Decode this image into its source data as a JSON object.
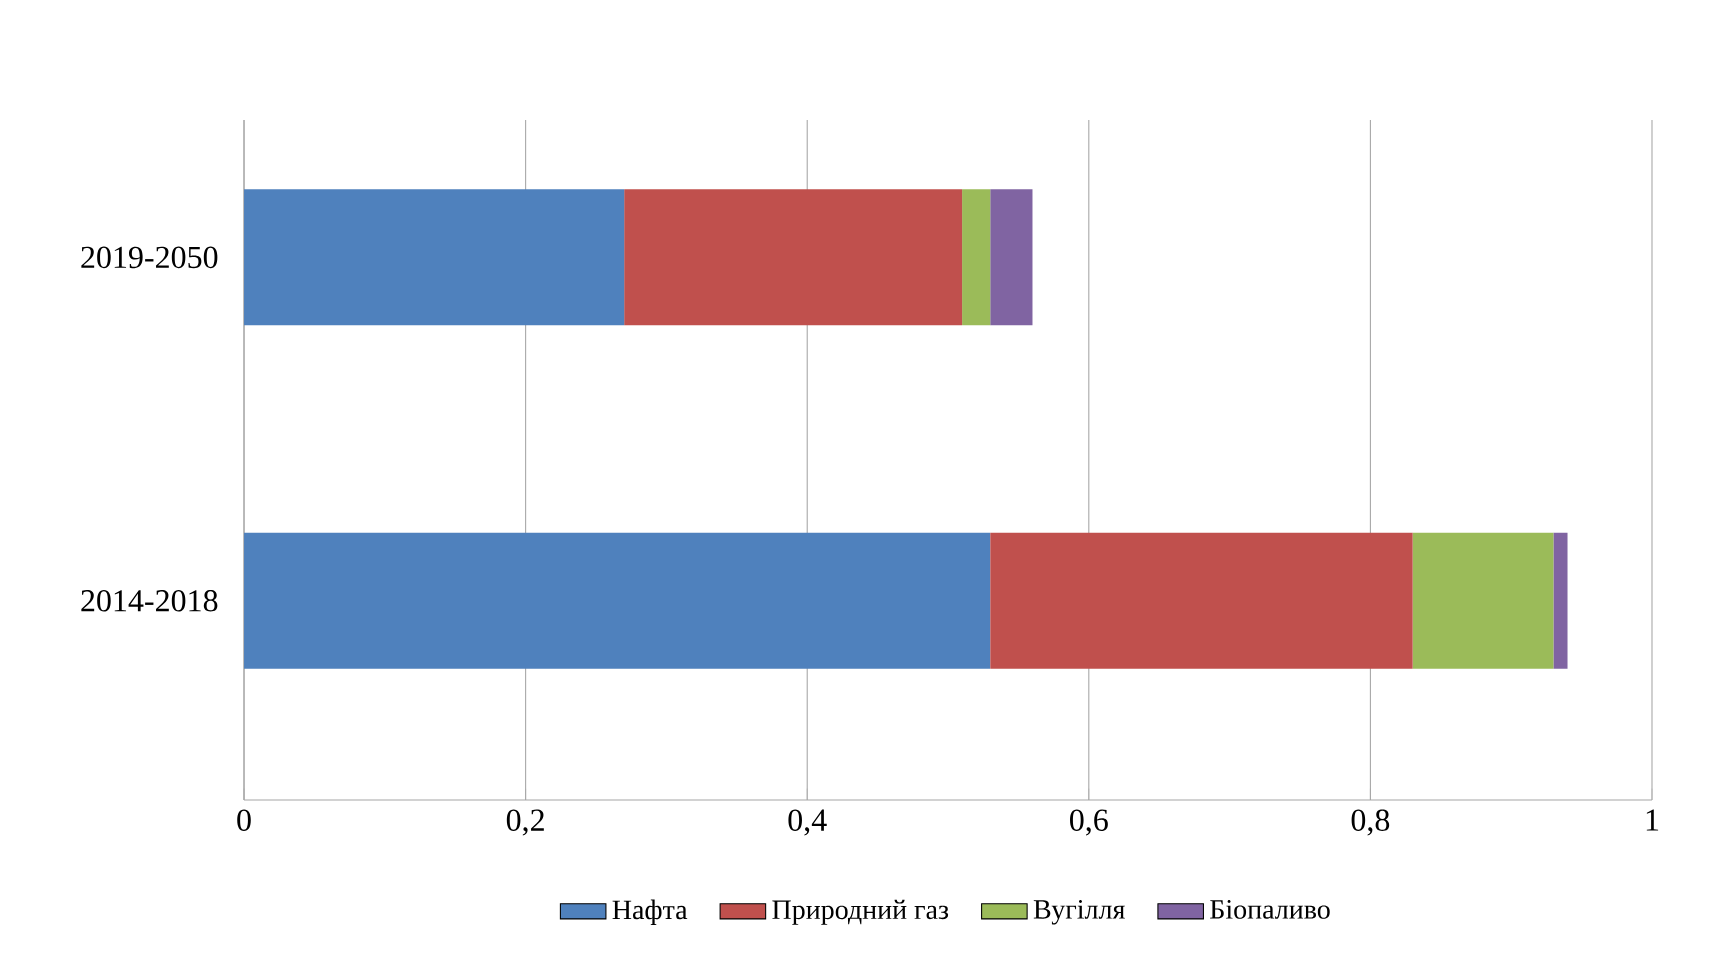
{
  "chart_data": {
    "type": "bar",
    "orientation": "horizontal",
    "stacked": true,
    "categories": [
      "2019-2050",
      "2014-2018"
    ],
    "series": [
      {
        "name": "Нафта",
        "color": "#4f81bd",
        "values": [
          0.27,
          0.53
        ]
      },
      {
        "name": "Природний газ",
        "color": "#c0504d",
        "values": [
          0.24,
          0.3
        ]
      },
      {
        "name": "Вугілля",
        "color": "#9bbb59",
        "values": [
          0.02,
          0.1
        ]
      },
      {
        "name": "Біопаливо",
        "color": "#8064a2",
        "values": [
          0.03,
          0.01
        ]
      }
    ],
    "xlim": [
      0,
      1
    ],
    "xticks": [
      0,
      {
        "value": 0.2,
        "label": "0,2"
      },
      {
        "value": 0.4,
        "label": "0,4"
      },
      {
        "value": 0.6,
        "label": "0,6"
      },
      {
        "value": 0.8,
        "label": "0,8"
      },
      1
    ],
    "grid": "x",
    "legend": "bottom"
  }
}
